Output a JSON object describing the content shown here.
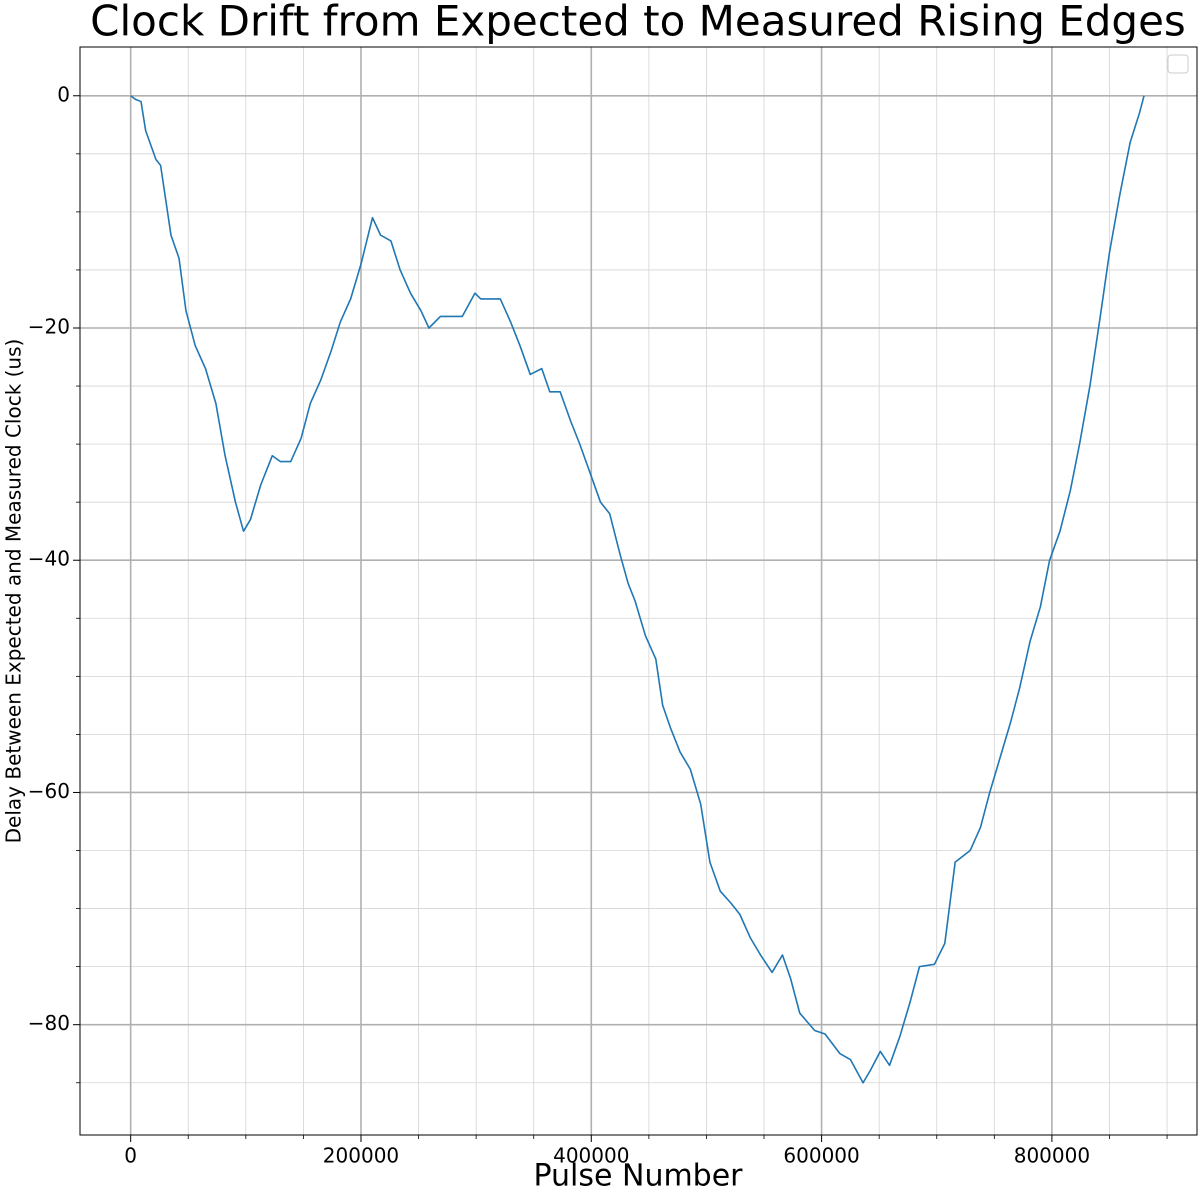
{
  "chart_data": {
    "type": "line",
    "title": "Clock Drift from Expected to Measured Rising Edges",
    "xlabel": "Pulse Number",
    "ylabel": "Delay Between Expected and Measured Clock (us)",
    "color": "#1f77b4",
    "grid": true,
    "legend": "upper right",
    "xlim": [
      -44000,
      926000
    ],
    "ylim": [
      -89.5,
      4.2
    ],
    "xticks": [
      0,
      200000,
      400000,
      600000,
      800000
    ],
    "yticks": [
      {
        "value": -80,
        "label": "−80"
      },
      {
        "value": -60,
        "label": "−60"
      },
      {
        "value": -40,
        "label": "−40"
      },
      {
        "value": -20,
        "label": "−20"
      },
      0
    ],
    "xminorticks": [
      50000,
      100000,
      150000,
      250000,
      300000,
      350000,
      450000,
      500000,
      550000,
      650000,
      700000,
      750000,
      850000,
      900000
    ],
    "yminorticks": [
      -85,
      -75,
      -70,
      -65,
      -55,
      -50,
      -45,
      -35,
      -30,
      -25,
      -15,
      -10,
      -5
    ],
    "x": [
      0,
      4000,
      9000,
      13000,
      22000,
      26000,
      35000,
      42000,
      48000,
      56000,
      65000,
      74000,
      82000,
      91000,
      98000,
      104000,
      113000,
      123000,
      130000,
      139000,
      148000,
      156000,
      165000,
      174000,
      182000,
      191000,
      200000,
      210000,
      217000,
      226000,
      234000,
      243000,
      252000,
      259000,
      269000,
      278000,
      288000,
      299000,
      304000,
      312000,
      321000,
      330000,
      338000,
      347000,
      357000,
      364000,
      373000,
      382000,
      390000,
      399000,
      408000,
      416000,
      425000,
      432000,
      438000,
      447000,
      456000,
      462000,
      469000,
      477000,
      486000,
      495000,
      503000,
      512000,
      521000,
      529000,
      538000,
      547000,
      557000,
      566000,
      573000,
      581000,
      594000,
      603000,
      616000,
      625000,
      636000,
      642000,
      651000,
      659000,
      668000,
      677000,
      685000,
      698000,
      707000,
      716000,
      729000,
      738000,
      746000,
      755000,
      764000,
      772000,
      781000,
      790000,
      798000,
      807000,
      816000,
      824000,
      833000,
      842000,
      850000,
      859000,
      868000,
      876000,
      880000
    ],
    "values": [
      0,
      -0.3,
      -0.5,
      -3,
      -5.5,
      -6,
      -12,
      -14,
      -18.5,
      -21.5,
      -23.5,
      -26.5,
      -31,
      -35,
      -37.5,
      -36.5,
      -33.5,
      -31,
      -31.5,
      -31.5,
      -29.5,
      -26.5,
      -24.5,
      -22,
      -19.5,
      -17.5,
      -14.5,
      -10.5,
      -12,
      -12.5,
      -15,
      -17,
      -18.5,
      -20,
      -19,
      -19,
      -19,
      -17,
      -17.5,
      -17.5,
      -17.5,
      -19.5,
      -21.5,
      -24,
      -23.5,
      -25.5,
      -25.5,
      -28,
      -30,
      -32.5,
      -35,
      -36,
      -39.5,
      -42,
      -43.5,
      -46.5,
      -48.5,
      -52.5,
      -54.5,
      -56.5,
      -58,
      -61,
      -66,
      -68.5,
      -69.5,
      -70.5,
      -72.5,
      -74,
      -75.5,
      -74,
      -76,
      -79,
      -80.5,
      -80.8,
      -82.5,
      -83,
      -85,
      -84,
      -82.3,
      -83.5,
      -81,
      -78,
      -75,
      -74.8,
      -73,
      -66,
      -65,
      -63,
      -60,
      -57,
      -54,
      -51,
      -47,
      -44,
      -40,
      -37.5,
      -34,
      -30,
      -25,
      -19,
      -13.5,
      -8.5,
      -4,
      -1.5,
      0
    ]
  }
}
